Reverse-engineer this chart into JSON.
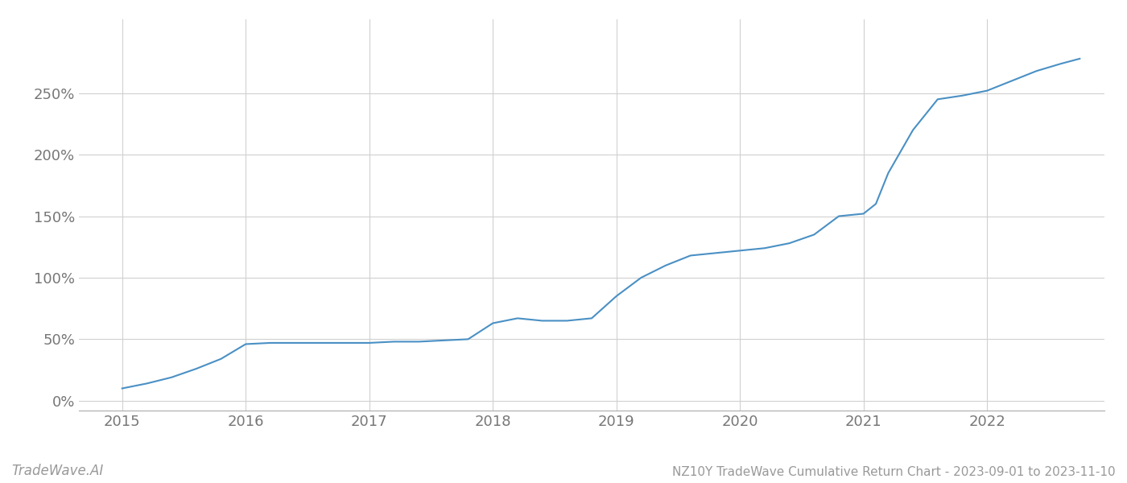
{
  "title": "NZ10Y TradeWave Cumulative Return Chart - 2023-09-01 to 2023-11-10",
  "watermark": "TradeWave.AI",
  "line_color": "#4a90c4",
  "background_color": "#ffffff",
  "grid_color": "#d0d0d0",
  "x_values": [
    2015.0,
    2015.2,
    2015.4,
    2015.6,
    2015.8,
    2016.0,
    2016.2,
    2016.4,
    2016.6,
    2016.8,
    2017.0,
    2017.2,
    2017.4,
    2017.6,
    2017.8,
    2018.0,
    2018.1,
    2018.2,
    2018.4,
    2018.6,
    2018.8,
    2019.0,
    2019.2,
    2019.4,
    2019.6,
    2019.8,
    2020.0,
    2020.1,
    2020.2,
    2020.4,
    2020.6,
    2020.8,
    2021.0,
    2021.1,
    2021.2,
    2021.4,
    2021.6,
    2021.8,
    2022.0,
    2022.2,
    2022.4,
    2022.6,
    2022.75
  ],
  "y_values": [
    10,
    14,
    19,
    26,
    34,
    46,
    47,
    47,
    47,
    47,
    47,
    48,
    48,
    49,
    50,
    63,
    65,
    67,
    65,
    65,
    67,
    85,
    100,
    110,
    118,
    120,
    122,
    123,
    124,
    128,
    135,
    150,
    152,
    160,
    185,
    220,
    245,
    248,
    252,
    260,
    268,
    274,
    278
  ],
  "xlim": [
    2014.65,
    2022.95
  ],
  "ylim": [
    -8,
    310
  ],
  "yticks": [
    0,
    50,
    100,
    150,
    200,
    250
  ],
  "xticks": [
    2015,
    2016,
    2017,
    2018,
    2019,
    2020,
    2021,
    2022
  ],
  "line_width": 1.5,
  "title_fontsize": 11,
  "tick_fontsize": 13,
  "watermark_fontsize": 12
}
